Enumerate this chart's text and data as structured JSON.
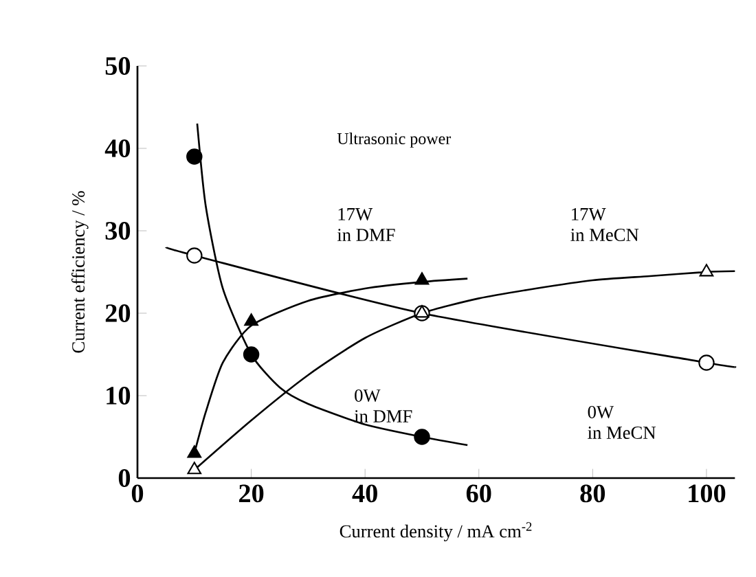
{
  "chart_data": {
    "type": "scatter",
    "xlabel": "Current density / mA cm$^{-2}$",
    "ylabel": "Current efficiency / %",
    "annotations": [
      "Ultrasonic power",
      "17W",
      "in DMF",
      "17W",
      "in MeCN",
      "0W",
      "in DMF",
      "0W",
      "in MeCN"
    ],
    "xlim": [
      0,
      105
    ],
    "ylim": [
      0,
      50
    ],
    "xticks": [
      0,
      20,
      40,
      60,
      80,
      100
    ],
    "yticks": [
      0,
      10,
      20,
      30,
      40,
      50
    ],
    "series": [
      {
        "marker": "circle",
        "color": "#000000",
        "x": [
          10,
          20,
          50
        ],
        "values": [
          39,
          15,
          5
        ]
      },
      {
        "marker": "triangle",
        "color": "#000000",
        "x": [
          10,
          20,
          50
        ],
        "values": [
          3,
          19,
          24
        ]
      },
      {
        "marker": "circle",
        "color": "#ffffff",
        "x": [
          10,
          50,
          100
        ],
        "values": [
          27,
          20,
          14
        ]
      },
      {
        "marker": "triangle",
        "color": "#ffffff",
        "x": [
          10,
          50,
          100
        ],
        "values": [
          1,
          20,
          25
        ]
      },
      {
        "type": "line",
        "marker": "none",
        "color": "#000000",
        "x": [
          10.5,
          12,
          15,
          20,
          25,
          30,
          40,
          50,
          58
        ],
        "values": [
          43,
          33,
          23,
          15,
          11,
          9,
          6.5,
          5,
          4
        ]
      },
      {
        "type": "line",
        "marker": "none",
        "color": "#000000",
        "x": [
          10,
          12,
          15,
          20,
          30,
          40,
          50,
          58
        ],
        "values": [
          3,
          8,
          14,
          18.5,
          21.5,
          23,
          23.8,
          24.2
        ]
      },
      {
        "type": "line",
        "marker": "none",
        "color": "#000000",
        "x": [
          5,
          10,
          50,
          100,
          105
        ],
        "values": [
          28,
          27,
          20,
          14,
          13.5
        ]
      },
      {
        "type": "line",
        "marker": "none",
        "color": "#000000",
        "x": [
          10,
          20,
          30,
          40,
          50,
          60,
          70,
          80,
          90,
          100,
          105
        ],
        "values": [
          1,
          7,
          12.5,
          17,
          20,
          21.8,
          23,
          24,
          24.5,
          25,
          25.1
        ]
      }
    ]
  }
}
